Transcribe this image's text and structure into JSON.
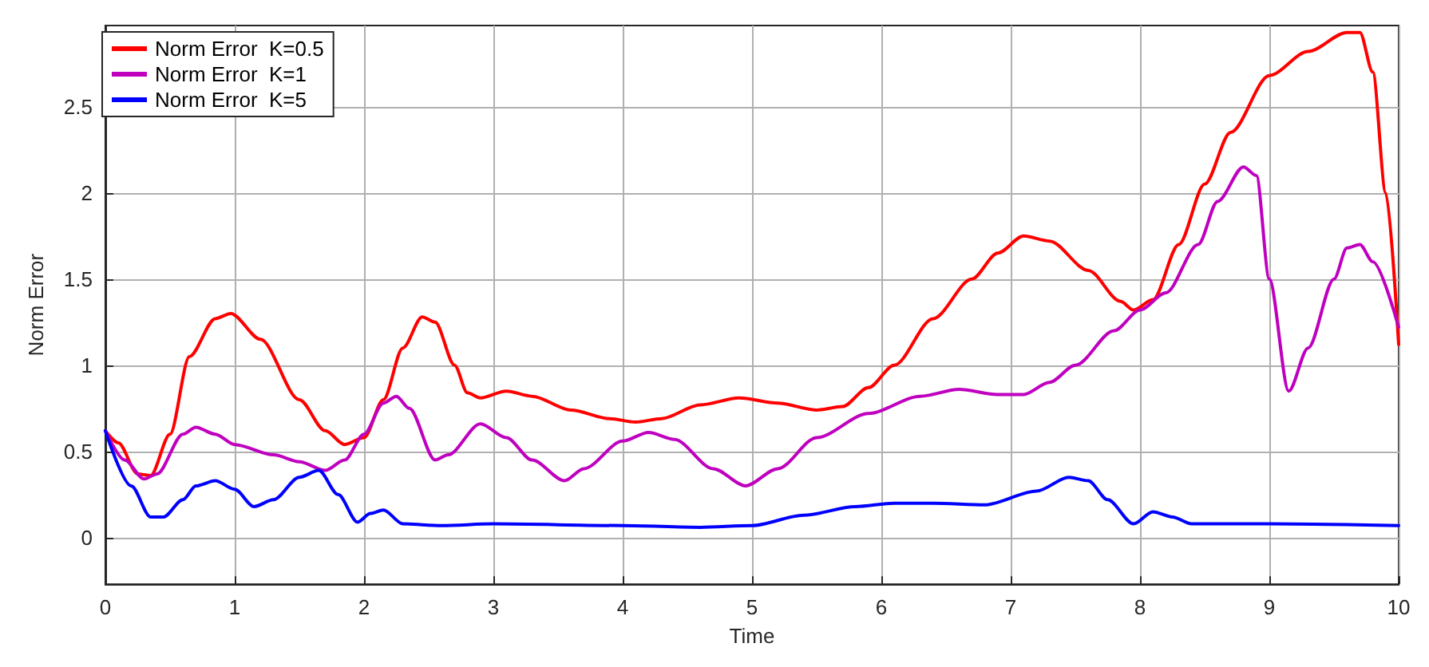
{
  "chart_data": {
    "type": "line",
    "xlabel": "Time",
    "ylabel": "Norm Error",
    "xlim": [
      0,
      10
    ],
    "xticks": [
      0,
      1,
      2,
      3,
      4,
      5,
      6,
      7,
      8,
      9,
      10
    ],
    "ylim": [
      -0.27,
      2.97
    ],
    "yticks": [
      0,
      0.5,
      1,
      1.5,
      2,
      2.5
    ],
    "grid": true,
    "legend": "top left",
    "marker": "none",
    "line_style": "solid",
    "series": [
      {
        "name": "Norm Error  K=0.5",
        "color": "#ff0000",
        "x": [
          0,
          0.1,
          0.25,
          0.35,
          0.5,
          0.65,
          0.85,
          0.97,
          1.2,
          1.5,
          1.7,
          1.85,
          2.0,
          2.15,
          2.3,
          2.45,
          2.55,
          2.7,
          2.8,
          2.9,
          3.1,
          3.3,
          3.6,
          3.9,
          4.1,
          4.3,
          4.6,
          4.9,
          5.2,
          5.5,
          5.7,
          5.9,
          6.1,
          6.4,
          6.7,
          6.9,
          7.1,
          7.3,
          7.6,
          7.85,
          7.95,
          8.1,
          8.3,
          8.5,
          8.7,
          9.0,
          9.3,
          9.6,
          9.7,
          9.8,
          9.9,
          10
        ],
        "values": [
          0.62,
          0.55,
          0.37,
          0.36,
          0.6,
          1.05,
          1.27,
          1.3,
          1.15,
          0.8,
          0.62,
          0.54,
          0.58,
          0.8,
          1.1,
          1.28,
          1.25,
          1.0,
          0.84,
          0.81,
          0.85,
          0.82,
          0.74,
          0.69,
          0.67,
          0.69,
          0.77,
          0.81,
          0.78,
          0.74,
          0.76,
          0.87,
          1.0,
          1.27,
          1.5,
          1.65,
          1.75,
          1.72,
          1.55,
          1.37,
          1.32,
          1.38,
          1.7,
          2.05,
          2.35,
          2.68,
          2.82,
          2.93,
          2.93,
          2.7,
          2.0,
          1.12
        ]
      },
      {
        "name": "Norm Error  K=1",
        "color": "#bf00bf",
        "x": [
          0,
          0.15,
          0.3,
          0.4,
          0.6,
          0.7,
          0.85,
          1.0,
          1.3,
          1.5,
          1.7,
          1.85,
          2.0,
          2.15,
          2.25,
          2.35,
          2.55,
          2.65,
          2.9,
          3.1,
          3.3,
          3.55,
          3.7,
          4.0,
          4.2,
          4.4,
          4.7,
          4.95,
          5.2,
          5.5,
          5.9,
          6.3,
          6.6,
          6.9,
          7.1,
          7.3,
          7.5,
          7.8,
          8.0,
          8.2,
          8.45,
          8.6,
          8.8,
          8.9,
          9.0,
          9.15,
          9.3,
          9.5,
          9.6,
          9.7,
          9.8,
          10
        ],
        "values": [
          0.62,
          0.45,
          0.34,
          0.37,
          0.6,
          0.64,
          0.6,
          0.54,
          0.48,
          0.44,
          0.39,
          0.45,
          0.6,
          0.78,
          0.82,
          0.75,
          0.45,
          0.48,
          0.66,
          0.58,
          0.45,
          0.33,
          0.4,
          0.56,
          0.61,
          0.57,
          0.4,
          0.3,
          0.4,
          0.58,
          0.72,
          0.82,
          0.86,
          0.83,
          0.83,
          0.9,
          1.0,
          1.2,
          1.32,
          1.42,
          1.7,
          1.95,
          2.15,
          2.1,
          1.5,
          0.85,
          1.1,
          1.5,
          1.68,
          1.7,
          1.6,
          1.22
        ]
      },
      {
        "name": "Norm Error  K=5",
        "color": "#0000ff",
        "x": [
          0,
          0.2,
          0.35,
          0.45,
          0.6,
          0.7,
          0.85,
          1.0,
          1.15,
          1.3,
          1.5,
          1.65,
          1.8,
          1.95,
          2.05,
          2.15,
          2.3,
          2.6,
          3.0,
          4.0,
          4.6,
          5.0,
          5.4,
          5.8,
          6.1,
          6.4,
          6.8,
          7.2,
          7.45,
          7.6,
          7.75,
          7.95,
          8.1,
          8.25,
          8.4,
          9.0,
          10
        ],
        "values": [
          0.62,
          0.3,
          0.12,
          0.12,
          0.22,
          0.3,
          0.33,
          0.28,
          0.18,
          0.22,
          0.35,
          0.39,
          0.25,
          0.09,
          0.14,
          0.16,
          0.08,
          0.07,
          0.08,
          0.07,
          0.06,
          0.07,
          0.13,
          0.18,
          0.2,
          0.2,
          0.19,
          0.27,
          0.35,
          0.33,
          0.22,
          0.08,
          0.15,
          0.12,
          0.08,
          0.08,
          0.07
        ]
      }
    ]
  }
}
